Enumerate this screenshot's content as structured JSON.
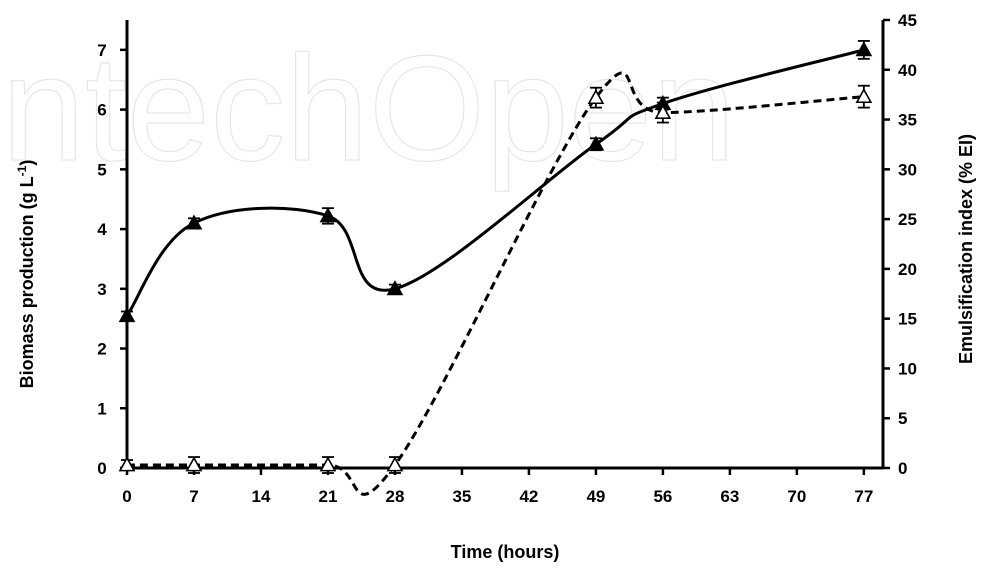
{
  "watermark_text": "IntechOpen",
  "chart_data": {
    "type": "line",
    "xlabel": "Time (hours)",
    "ylabel_left": "Biomass production (g L",
    "ylabel_left_sup": "-1",
    "ylabel_left_close": ")",
    "ylabel_right": "Emulsification index (% EI)",
    "x_ticks": [
      "0",
      "7",
      "14",
      "21",
      "28",
      "35",
      "42",
      "49",
      "56",
      "63",
      "70",
      "77"
    ],
    "xlim": [
      0,
      79
    ],
    "y_left_ticks": [
      "0",
      "1",
      "2",
      "3",
      "4",
      "5",
      "6",
      "7"
    ],
    "ylim_left": [
      0,
      7.5
    ],
    "y_right_ticks": [
      "0",
      "5",
      "10",
      "15",
      "20",
      "25",
      "30",
      "35",
      "40",
      "45"
    ],
    "ylim_right": [
      0,
      45
    ],
    "series": [
      {
        "axis": "left",
        "line_style": "solid",
        "marker": "filled-triangle",
        "x": [
          0,
          7,
          21,
          28,
          49,
          56,
          77
        ],
        "y": [
          2.55,
          4.1,
          4.22,
          3.0,
          5.42,
          6.1,
          7.0
        ],
        "error": [
          0.07,
          0.08,
          0.13,
          0.07,
          0.1,
          0.1,
          0.15
        ]
      },
      {
        "axis": "right",
        "line_style": "dashed",
        "marker": "open-triangle",
        "x": [
          0,
          7,
          21,
          28,
          49,
          56,
          77
        ],
        "y": [
          0.3,
          0.3,
          0.3,
          0.3,
          37.2,
          35.7,
          37.3
        ],
        "error": [
          0.5,
          0.8,
          0.8,
          0.8,
          1.0,
          1.0,
          1.1
        ]
      }
    ]
  }
}
